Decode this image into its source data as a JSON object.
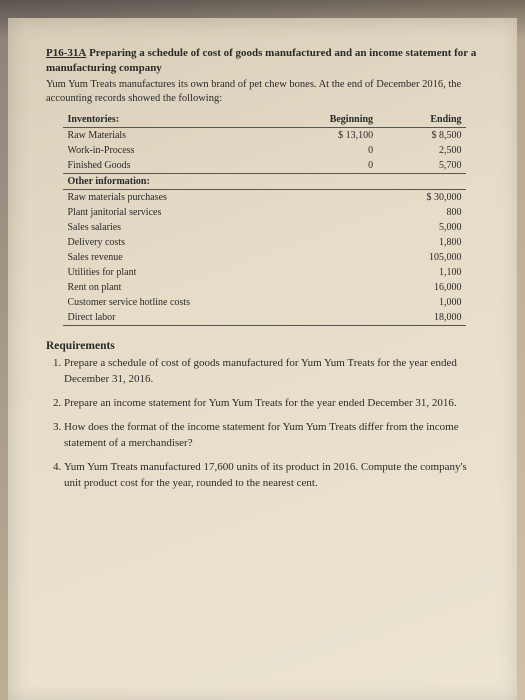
{
  "problem": {
    "id": "P16-31A",
    "title": "Preparing a schedule of cost of goods manufactured and an income statement for a manufacturing company",
    "intro": "Yum Yum Treats manufactures its own brand of pet chew bones. At the end of December 2016, the accounting records showed the following:"
  },
  "table": {
    "headers": {
      "label": "Inventories:",
      "col1": "Beginning",
      "col2": "Ending"
    },
    "inventories": [
      {
        "label": "Raw Materials",
        "beg": "$ 13,100",
        "end": "$    8,500"
      },
      {
        "label": "Work-in-Process",
        "beg": "0",
        "end": "2,500"
      },
      {
        "label": "Finished Goods",
        "beg": "0",
        "end": "5,700"
      }
    ],
    "otherHeader": "Other information:",
    "other": [
      {
        "label": "Raw materials purchases",
        "val": "$   30,000"
      },
      {
        "label": "Plant janitorial services",
        "val": "800"
      },
      {
        "label": "Sales salaries",
        "val": "5,000"
      },
      {
        "label": "Delivery costs",
        "val": "1,800"
      },
      {
        "label": "Sales revenue",
        "val": "105,000"
      },
      {
        "label": "Utilities for plant",
        "val": "1,100"
      },
      {
        "label": "Rent on plant",
        "val": "16,000"
      },
      {
        "label": "Customer service hotline costs",
        "val": "1,000"
      },
      {
        "label": "Direct labor",
        "val": "18,000"
      }
    ]
  },
  "requirements": {
    "heading": "Requirements",
    "items": [
      "Prepare a schedule of cost of goods manufactured for Yum Yum Treats for the year ended December 31, 2016.",
      "Prepare an income statement for Yum Yum Treats for the year ended December 31, 2016.",
      "How does the format of the income statement for Yum Yum Treats differ from the income statement of a merchandiser?",
      "Yum Yum Treats manufactured 17,600 units of its product in 2016. Compute the company's unit product cost for the year, rounded to the nearest cent."
    ]
  }
}
